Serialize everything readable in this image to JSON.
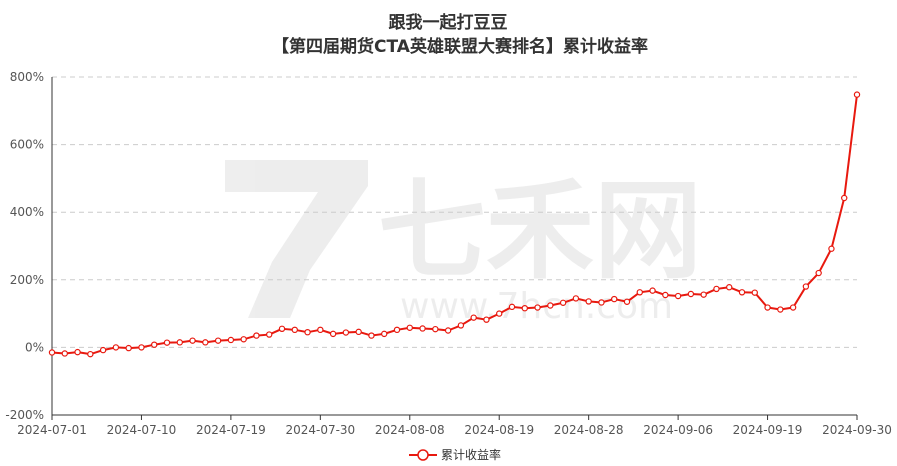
{
  "chart_data": {
    "type": "line",
    "title": "跟我一起打豆豆",
    "subtitle": "【第四届期货CTA英雄联盟大赛排名】累计收益率",
    "watermark": {
      "brand": "七禾网",
      "url": "www.7hcn.com"
    },
    "ylim": [
      -200,
      800
    ],
    "y_ticks": [
      "-200%",
      "0%",
      "200%",
      "400%",
      "600%",
      "800%"
    ],
    "y_tick_values": [
      -200,
      0,
      200,
      400,
      600,
      800
    ],
    "x_tick_labels": [
      "2024-07-01",
      "2024-07-10",
      "2024-07-19",
      "2024-07-30",
      "2024-08-08",
      "2024-08-19",
      "2024-08-28",
      "2024-09-06",
      "2024-09-19",
      "2024-09-30"
    ],
    "x_tick_indices": [
      0,
      7,
      14,
      21,
      28,
      35,
      42,
      49,
      56,
      63
    ],
    "grid": true,
    "legend_position": "bottom-center",
    "colors": {
      "line": "#e8190f",
      "grid": "#cccccc",
      "axis": "#333333"
    },
    "series": [
      {
        "name": "累计收益率",
        "values": [
          -15,
          -18,
          -14,
          -20,
          -8,
          0,
          -2,
          0,
          8,
          14,
          15,
          20,
          15,
          20,
          22,
          24,
          35,
          38,
          55,
          52,
          45,
          52,
          40,
          44,
          46,
          35,
          40,
          52,
          58,
          56,
          54,
          50,
          65,
          88,
          82,
          100,
          120,
          116,
          118,
          124,
          132,
          145,
          136,
          133,
          143,
          135,
          163,
          168,
          155,
          152,
          158,
          156,
          173,
          178,
          163,
          162,
          118,
          112,
          118,
          180,
          220,
          292,
          442,
          748
        ]
      }
    ]
  }
}
